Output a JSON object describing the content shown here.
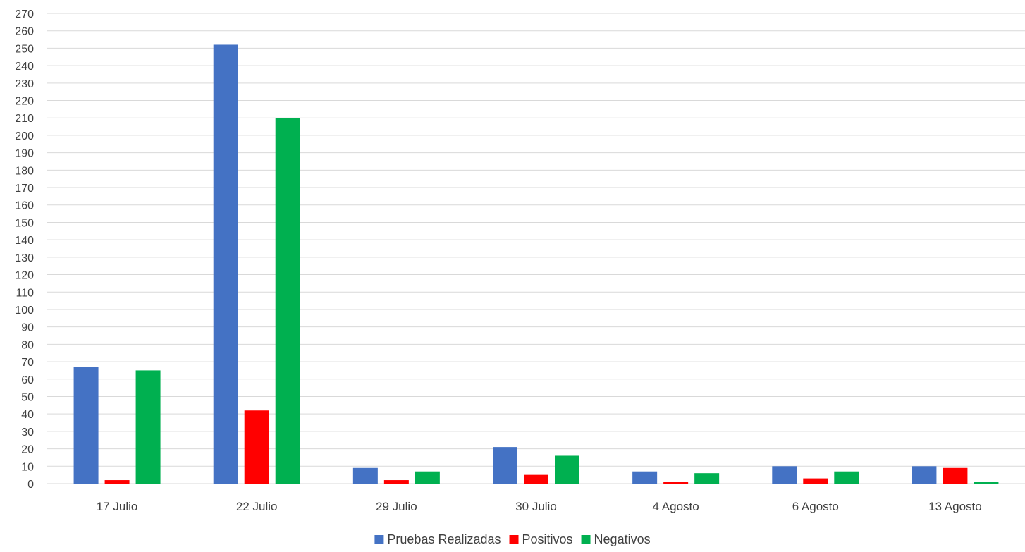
{
  "chart_data": {
    "type": "bar",
    "title": "",
    "xlabel": "",
    "ylabel": "",
    "ylim": [
      0,
      270
    ],
    "ytick_step": 10,
    "grid": true,
    "legend_position": "bottom",
    "categories": [
      "17 Julio",
      "22 Julio",
      "29 Julio",
      "30 Julio",
      "4 Agosto",
      "6 Agosto",
      "13 Agosto"
    ],
    "series": [
      {
        "name": "Pruebas Realizadas",
        "color": "#4472C4",
        "values": [
          67,
          252,
          9,
          21,
          7,
          10,
          10
        ]
      },
      {
        "name": "Positivos",
        "color": "#FF0000",
        "values": [
          2,
          42,
          2,
          5,
          1,
          3,
          9
        ]
      },
      {
        "name": "Negativos",
        "color": "#00B050",
        "values": [
          65,
          210,
          7,
          16,
          6,
          7,
          1
        ]
      }
    ]
  }
}
